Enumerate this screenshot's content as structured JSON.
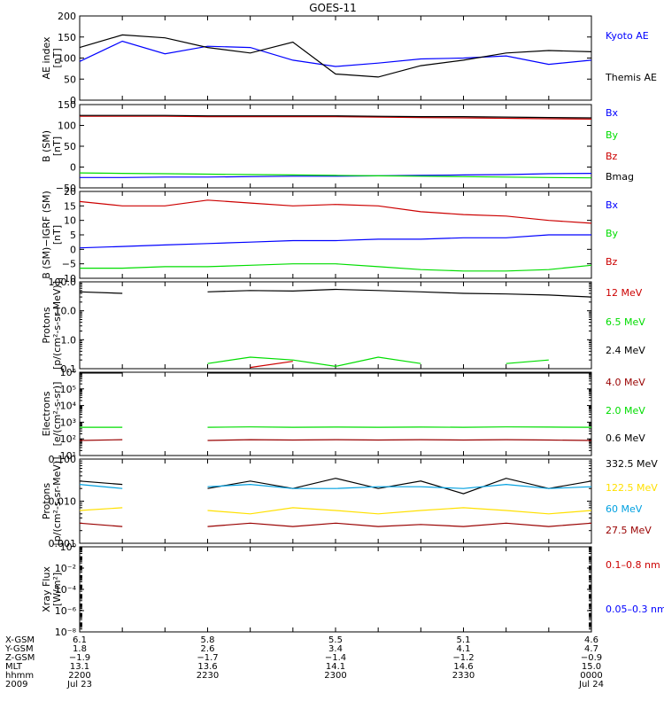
{
  "title": "GOES-11",
  "colors": {
    "black": "#000000",
    "blue": "#0000ff",
    "green": "#00dd00",
    "red": "#cc0000",
    "darkred": "#990000",
    "cyan": "#00a0e0",
    "yellow": "#ffe000"
  },
  "chart_data": [
    {
      "type": "line",
      "title": "GOES-11",
      "ylabel": [
        "AE index",
        "[nT]"
      ],
      "ylim": [
        0,
        200
      ],
      "yscale": "linear",
      "yticks": [
        "0",
        "50",
        "100",
        "150",
        "200"
      ],
      "x": [
        "22:00",
        "22:10",
        "22:20",
        "22:30",
        "22:40",
        "22:50",
        "23:00",
        "23:10",
        "23:20",
        "23:30",
        "23:40",
        "23:50",
        "24:00"
      ],
      "series": [
        {
          "name": "Kyoto AE",
          "color": "blue",
          "values": [
            92,
            140,
            110,
            128,
            125,
            95,
            80,
            88,
            98,
            100,
            105,
            85,
            95
          ]
        },
        {
          "name": "Themis AE",
          "color": "black",
          "values": [
            125,
            155,
            148,
            125,
            112,
            138,
            62,
            55,
            82,
            95,
            112,
            118,
            115
          ]
        }
      ]
    },
    {
      "type": "line",
      "ylabel": [
        "B (SM)",
        "[nT]"
      ],
      "ylim": [
        -50,
        150
      ],
      "yscale": "linear",
      "yticks": [
        "−50",
        "0",
        "50",
        "100",
        "150"
      ],
      "x": [
        "22:00",
        "22:10",
        "22:20",
        "22:30",
        "22:40",
        "22:50",
        "23:00",
        "23:10",
        "23:20",
        "23:30",
        "23:40",
        "23:50",
        "24:00"
      ],
      "series": [
        {
          "name": "Bx",
          "color": "blue",
          "values": [
            -25,
            -25,
            -24,
            -24,
            -23,
            -22,
            -22,
            -21,
            -20,
            -19,
            -18,
            -16,
            -15
          ]
        },
        {
          "name": "By",
          "color": "green",
          "values": [
            -14,
            -15,
            -16,
            -17,
            -18,
            -19,
            -20,
            -21,
            -22,
            -23,
            -24,
            -25,
            -26
          ]
        },
        {
          "name": "Bz",
          "color": "red",
          "values": [
            122,
            122,
            122,
            121,
            121,
            121,
            121,
            120,
            119,
            118,
            117,
            116,
            115
          ]
        },
        {
          "name": "Bmag",
          "color": "black",
          "values": [
            124,
            124,
            124,
            123,
            123,
            123,
            123,
            122,
            121,
            121,
            120,
            119,
            118
          ]
        }
      ]
    },
    {
      "type": "line",
      "ylabel": [
        "B (SM)−IGRF (SM)",
        "[nT]"
      ],
      "ylim": [
        -10,
        20
      ],
      "yscale": "linear",
      "yticks": [
        "−10",
        "−5",
        "0",
        "5",
        "10",
        "15",
        "20"
      ],
      "x": [
        "22:00",
        "22:10",
        "22:20",
        "22:30",
        "22:40",
        "22:50",
        "23:00",
        "23:10",
        "23:20",
        "23:30",
        "23:40",
        "23:50",
        "24:00"
      ],
      "series": [
        {
          "name": "Bx",
          "color": "blue",
          "values": [
            0.5,
            1,
            1.5,
            2,
            2.5,
            3,
            3,
            3.5,
            3.5,
            4,
            4,
            5,
            5
          ]
        },
        {
          "name": "By",
          "color": "green",
          "values": [
            -6.5,
            -6.5,
            -6,
            -6,
            -5.5,
            -5,
            -5,
            -6,
            -7,
            -7.5,
            -7.5,
            -7,
            -5.5
          ]
        },
        {
          "name": "Bz",
          "color": "red",
          "values": [
            16.5,
            15,
            15,
            17,
            16,
            15,
            15.5,
            15,
            13,
            12,
            11.5,
            10,
            9
          ]
        }
      ]
    },
    {
      "type": "line",
      "ylabel": [
        "Protons",
        "[p/(cm²-s-sr-MeV)]"
      ],
      "ylim": [
        0.1,
        100
      ],
      "yscale": "log",
      "yticks": [
        "0.1",
        "1.0",
        "10.0",
        "100.0"
      ],
      "x": [
        "22:00",
        "22:10",
        "22:20",
        "22:30",
        "22:40",
        "22:50",
        "23:00",
        "23:10",
        "23:20",
        "23:30",
        "23:40",
        "23:50",
        "24:00"
      ],
      "series": [
        {
          "name": "12 MeV",
          "color": "red",
          "values": [
            null,
            null,
            null,
            null,
            0.11,
            0.18,
            null,
            null,
            null,
            null,
            null,
            null,
            0.12
          ]
        },
        {
          "name": "6.5 MeV",
          "color": "green",
          "values": [
            null,
            null,
            null,
            0.15,
            0.25,
            0.2,
            0.12,
            0.25,
            0.15,
            null,
            0.15,
            0.2,
            null
          ]
        },
        {
          "name": "2.4 MeV",
          "color": "black",
          "values": [
            45,
            40,
            null,
            45,
            50,
            48,
            55,
            50,
            45,
            40,
            38,
            35,
            30
          ]
        }
      ]
    },
    {
      "type": "line",
      "ylabel": [
        "Electrons",
        "[e/(cm²-s-sr)]"
      ],
      "ylim": [
        10,
        1000000
      ],
      "yscale": "log",
      "yticks": [
        "10¹",
        "10²",
        "10³",
        "10⁴",
        "10⁵",
        "10⁶"
      ],
      "x": [
        "22:00",
        "22:10",
        "22:20",
        "22:30",
        "22:40",
        "22:50",
        "23:00",
        "23:10",
        "23:20",
        "23:30",
        "23:40",
        "23:50",
        "24:00"
      ],
      "series": [
        {
          "name": "4.0 MeV",
          "color": "darkred",
          "values": [
            80,
            90,
            null,
            80,
            90,
            85,
            90,
            85,
            90,
            85,
            90,
            85,
            80
          ]
        },
        {
          "name": "2.0 MeV",
          "color": "green",
          "values": [
            500,
            500,
            null,
            500,
            520,
            500,
            510,
            500,
            510,
            500,
            520,
            510,
            500
          ]
        },
        {
          "name": "0.6 MeV",
          "color": "black",
          "values": [
            900000,
            900000,
            null,
            900000,
            900000,
            900000,
            900000,
            900000,
            900000,
            900000,
            900000,
            900000,
            900000
          ]
        }
      ]
    },
    {
      "type": "line",
      "ylabel": [
        "Protons",
        "[p/(cm²-s-sr-MeV)]"
      ],
      "ylim": [
        0.001,
        0.1
      ],
      "yscale": "log",
      "yticks": [
        "0.001",
        "0.010",
        "0.100"
      ],
      "x": [
        "22:00",
        "22:10",
        "22:20",
        "22:30",
        "22:40",
        "22:50",
        "23:00",
        "23:10",
        "23:20",
        "23:30",
        "23:40",
        "23:50",
        "24:00"
      ],
      "series": [
        {
          "name": "332.5 MeV",
          "color": "black",
          "values": [
            0.03,
            0.025,
            null,
            0.02,
            0.03,
            0.02,
            0.035,
            0.02,
            0.03,
            0.015,
            0.035,
            0.02,
            0.03
          ]
        },
        {
          "name": "122.5 MeV",
          "color": "yellow",
          "values": [
            0.006,
            0.007,
            null,
            0.006,
            0.005,
            0.007,
            0.006,
            0.005,
            0.006,
            0.007,
            0.006,
            0.005,
            0.006
          ]
        },
        {
          "name": "60 MeV",
          "color": "cyan",
          "values": [
            0.025,
            0.02,
            null,
            0.022,
            0.025,
            0.02,
            0.02,
            0.022,
            0.022,
            0.02,
            0.025,
            0.02,
            0.022
          ]
        },
        {
          "name": "27.5 MeV",
          "color": "darkred",
          "values": [
            0.003,
            0.0025,
            null,
            0.0025,
            0.003,
            0.0025,
            0.003,
            0.0025,
            0.0028,
            0.0025,
            0.003,
            0.0025,
            0.003
          ]
        }
      ]
    },
    {
      "type": "line",
      "ylabel": [
        "Xray Flux",
        "[W/m²]"
      ],
      "ylim": [
        1e-09,
        1
      ],
      "yscale": "log",
      "yticks": [
        "10⁻⁸",
        "10⁻⁶",
        "10⁻⁴",
        "10⁻²",
        "10⁰"
      ],
      "x": [],
      "series": [
        {
          "name": "0.1–0.8 nm",
          "color": "red",
          "values": []
        },
        {
          "name": "0.05–0.3 nm",
          "color": "blue",
          "values": []
        }
      ]
    }
  ],
  "ephemeris": {
    "row_labels": [
      "X-GSM",
      "Y-GSM",
      "Z-GSM",
      "MLT",
      "hhmm",
      "2009"
    ],
    "columns": [
      [
        "6.1",
        "1.8",
        "−1.9",
        "13.1",
        "2200",
        "Jul 23"
      ],
      [
        "5.8",
        "2.6",
        "−1.7",
        "13.6",
        "2230",
        ""
      ],
      [
        "5.5",
        "3.4",
        "−1.4",
        "14.1",
        "2300",
        ""
      ],
      [
        "5.1",
        "4.1",
        "−1.2",
        "14.6",
        "2330",
        ""
      ],
      [
        "4.6",
        "4.7",
        "−0.9",
        "15.0",
        "0000",
        "Jul 24"
      ]
    ]
  }
}
